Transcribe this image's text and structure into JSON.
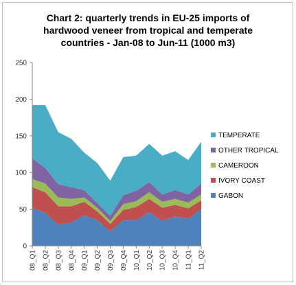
{
  "chart_data": {
    "type": "area",
    "stacked": true,
    "title_lines": [
      "Chart 2: quarterly trends in EU-25 imports of",
      "hardwood veneer from tropical and temperate",
      "countries - Jan-08 to Jun-11 (1000 m3)"
    ],
    "categories": [
      "08_Q1",
      "08_Q2",
      "08_Q3",
      "08_Q4",
      "09_Q1",
      "09_Q2",
      "09_Q3",
      "09_Q4",
      "10_Q1",
      "10_Q2",
      "10_Q3",
      "10_Q4",
      "11_Q1",
      "11_Q2"
    ],
    "ylim": [
      0,
      250
    ],
    "yticks": [
      0,
      50,
      100,
      150,
      200,
      250
    ],
    "grid": false,
    "legend_position": "right",
    "series": [
      {
        "name": "GABON",
        "color": "#4f81bd",
        "values": [
          52,
          45,
          29,
          32,
          42,
          35,
          20,
          35,
          35,
          46,
          34,
          40,
          37,
          50
        ]
      },
      {
        "name": "IVORY COAST",
        "color": "#c0504d",
        "values": [
          28,
          28,
          25,
          22,
          18,
          12,
          10,
          14,
          18,
          18,
          18,
          16,
          14,
          12
        ]
      },
      {
        "name": "CAMEROON",
        "color": "#9bbb59",
        "values": [
          11,
          12,
          12,
          10,
          6,
          5,
          4,
          8,
          8,
          9,
          8,
          8,
          8,
          8
        ]
      },
      {
        "name": "OTHER TROPICAL",
        "color": "#8064a2",
        "values": [
          28,
          21,
          18,
          16,
          10,
          6,
          7,
          12,
          14,
          14,
          10,
          12,
          11,
          15
        ]
      },
      {
        "name": "TEMPERATE",
        "color": "#4bacc6",
        "values": [
          73,
          86,
          71,
          66,
          51,
          55,
          48,
          52,
          48,
          52,
          53,
          53,
          47,
          57
        ]
      }
    ]
  }
}
